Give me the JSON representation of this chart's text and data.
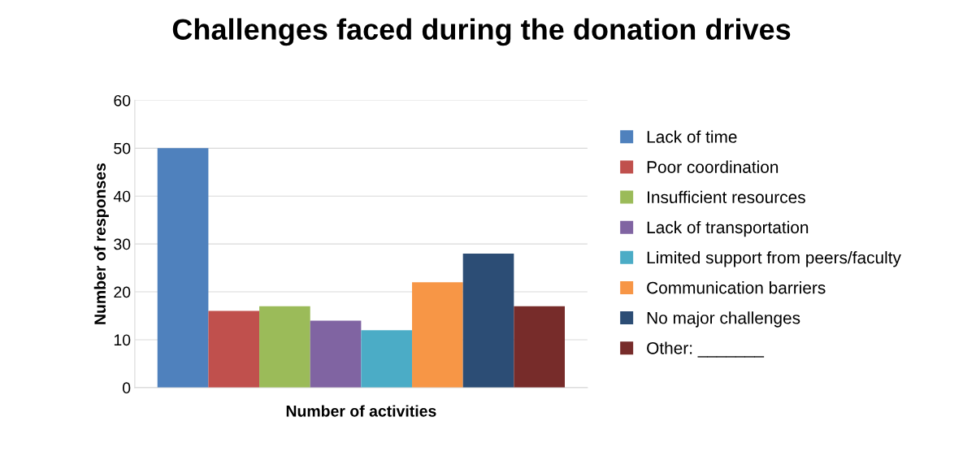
{
  "chart_data": {
    "type": "bar",
    "title": "Challenges faced during the donation drives",
    "xlabel": "Number of activities",
    "ylabel": "Number of responses",
    "categories": [
      null
    ],
    "series": [
      {
        "name": "Lack of time",
        "color": "#4f81bd",
        "values": [
          50
        ]
      },
      {
        "name": "Poor coordination",
        "color": "#c0504d",
        "values": [
          16
        ]
      },
      {
        "name": "Insufficient resources",
        "color": "#9bbb59",
        "values": [
          17
        ]
      },
      {
        "name": "Lack of transportation",
        "color": "#8064a2",
        "values": [
          14
        ]
      },
      {
        "name": "Limited support from peers/faculty",
        "color": "#4bacc6",
        "values": [
          12
        ]
      },
      {
        "name": "Communication barriers",
        "color": "#f79646",
        "values": [
          22
        ]
      },
      {
        "name": "No major challenges",
        "color": "#2c4d75",
        "values": [
          28
        ]
      },
      {
        "name": "Other: _______",
        "color": "#772c2a",
        "values": [
          17
        ]
      }
    ],
    "ylim": [
      0,
      60
    ],
    "yticks": [
      0,
      10,
      20,
      30,
      40,
      50,
      60
    ],
    "grid": "y",
    "legend": "right"
  }
}
